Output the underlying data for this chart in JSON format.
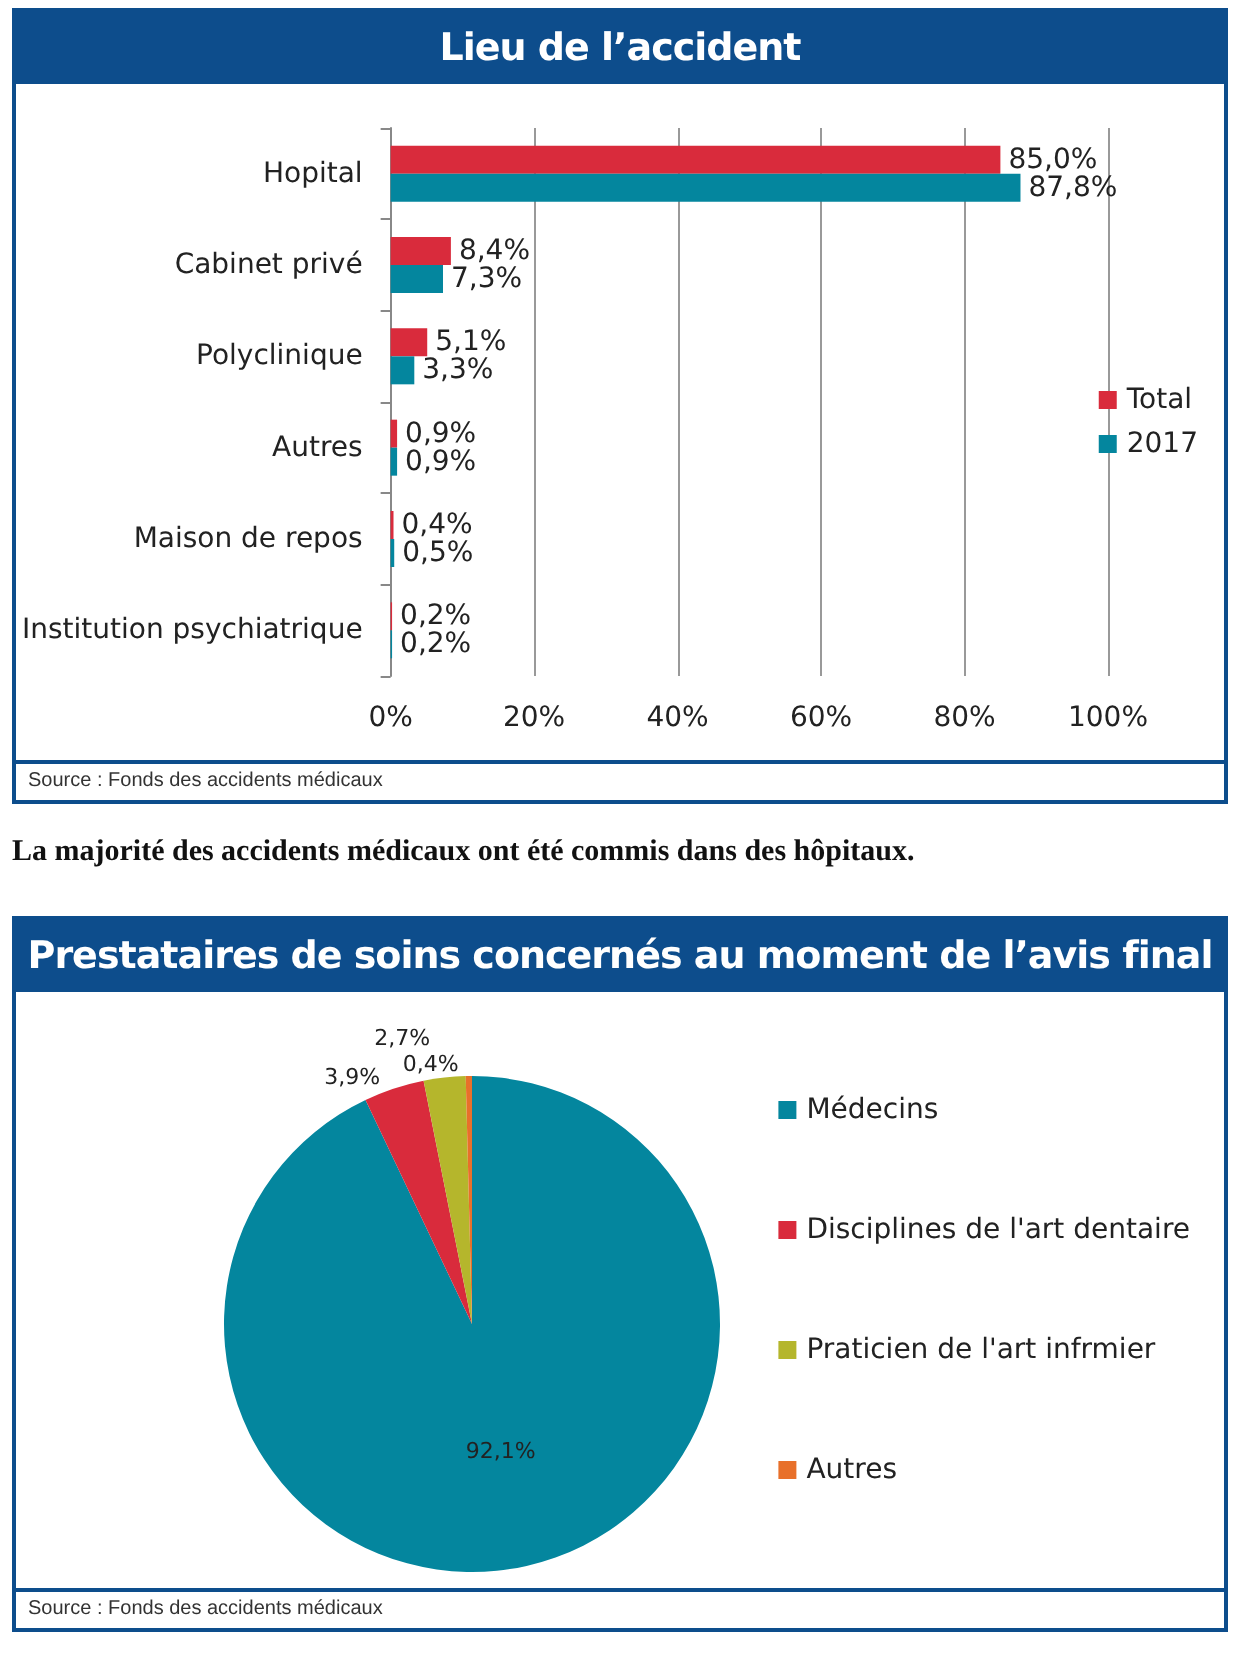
{
  "chart_data": [
    {
      "type": "bar",
      "orientation": "horizontal",
      "title": "Lieu de l’accident",
      "categories": [
        "Hopital",
        "Cabinet privé",
        "Polyclinique",
        "Autres",
        "Maison de repos",
        "Institution psychiatrique"
      ],
      "series": [
        {
          "name": "Total",
          "color": "#d92b3c",
          "values": [
            85.0,
            8.4,
            5.1,
            0.9,
            0.4,
            0.2
          ],
          "value_labels": [
            "85,0%",
            "8,4%",
            "5,1%",
            "0,9%",
            "0,4%",
            "0,2%"
          ]
        },
        {
          "name": "2017",
          "color": "#04869e",
          "values": [
            87.8,
            7.3,
            3.3,
            0.9,
            0.5,
            0.2
          ],
          "value_labels": [
            "87,8%",
            "7,3%",
            "3,3%",
            "0,9%",
            "0,5%",
            "0,2%"
          ]
        }
      ],
      "xlim": [
        0,
        100
      ],
      "xticks": [
        {
          "value": 0,
          "label": "0%"
        },
        {
          "value": 20,
          "label": "20%"
        },
        {
          "value": 40,
          "label": "40%"
        },
        {
          "value": 60,
          "label": "60%"
        },
        {
          "value": 80,
          "label": "80%"
        },
        {
          "value": 100,
          "label": "100%"
        }
      ],
      "grid": "x",
      "legend": "right",
      "annotations": [
        "Source : Fonds des accidents médicaux",
        "La majorité des accidents médicaux ont été commis dans des hôpitaux."
      ]
    },
    {
      "type": "pie",
      "title": "Prestataires de soins concernés au moment de l’avis final",
      "categories": [
        "Médecins",
        "Disciplines de l'art dentaire",
        "Praticien de l'art infrmier",
        "Autres"
      ],
      "values": [
        92.1,
        3.9,
        2.7,
        0.4
      ],
      "value_labels": [
        "92,1%",
        "3,9%",
        "2,7%",
        "0,4%"
      ],
      "colors": [
        "#04869e",
        "#d92b3c",
        "#b5b62c",
        "#e8702a"
      ],
      "legend": "right",
      "annotations": [
        "Source : Fonds des accidents médicaux"
      ]
    }
  ]
}
